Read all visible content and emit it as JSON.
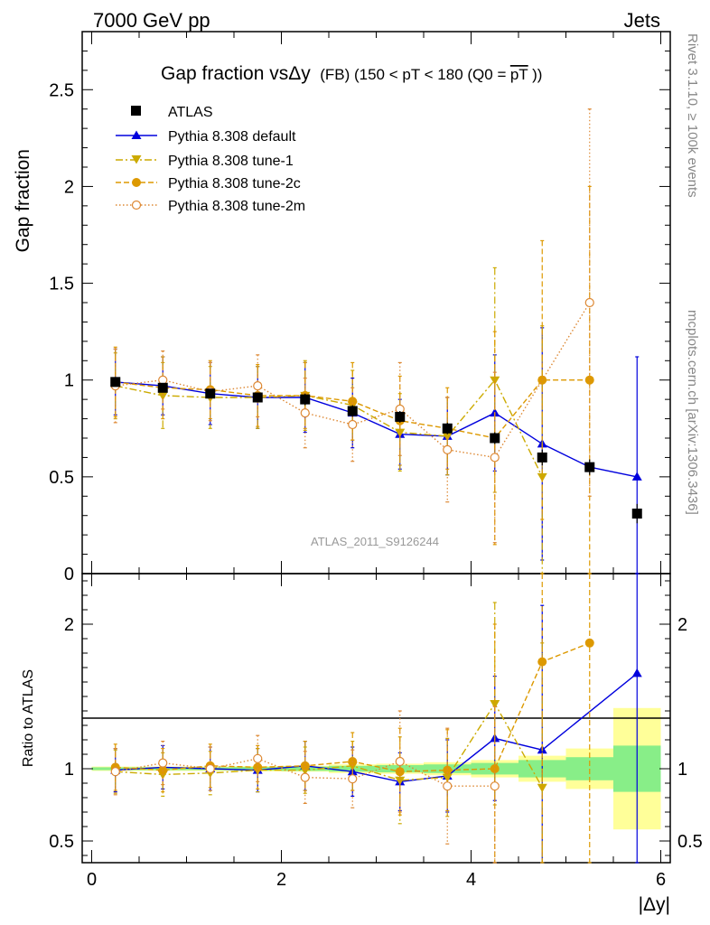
{
  "header": {
    "left": "7000 GeV pp",
    "right": "Jets"
  },
  "side_labels": {
    "rivet": "Rivet 3.1.10, ≥ 100k events",
    "mcplots": "mcplots.cern.ch [arXiv:1306.3436]"
  },
  "chart_data": [
    {
      "panel": "main",
      "type": "line",
      "title": "Gap fraction vsΔy (FB) (150 < pT < 180 (Q0 = pT))",
      "title_parts": {
        "main": "Gap fraction vsΔy",
        "sub": "(FB) (150 < pT < 180 (Q0 =",
        "overline": "pT",
        "close": "))"
      },
      "ylabel": "Gap fraction",
      "xlabel": "|Δy|",
      "xlim": [
        -0.1,
        6.1
      ],
      "ylim": [
        0,
        2.8
      ],
      "yticks": [
        0,
        0.5,
        1,
        1.5,
        2,
        2.5
      ],
      "xticks": [
        0,
        2,
        4,
        6
      ],
      "watermark": "ATLAS_2011_S9126244",
      "legend_position": "top-left",
      "x": [
        0.25,
        0.75,
        1.25,
        1.75,
        2.25,
        2.75,
        3.25,
        3.75,
        4.25,
        4.75,
        5.25,
        5.75
      ],
      "data": {
        "name": "ATLAS",
        "values": [
          0.99,
          0.96,
          0.93,
          0.91,
          0.9,
          0.84,
          0.81,
          0.75,
          0.7,
          0.6,
          0.55,
          0.31
        ],
        "err": [
          0.02,
          0.02,
          0.02,
          0.02,
          0.03,
          0.03,
          0.03,
          0.03,
          0.03,
          0.04,
          0.04,
          0.05
        ]
      },
      "series": [
        {
          "name": "Pythia 8.308 default",
          "color": "#0000dd",
          "style": "solid",
          "marker": "triangle-up",
          "values": [
            0.99,
            0.97,
            0.93,
            0.91,
            0.91,
            0.83,
            0.72,
            0.71,
            0.83,
            0.67,
            0.55,
            0.5
          ],
          "err": [
            0.17,
            0.15,
            0.16,
            0.16,
            0.18,
            0.18,
            0.18,
            0.2,
            0.3,
            0.6,
            0.02,
            0.62
          ]
        },
        {
          "name": "Pythia 8.308 tune-1",
          "color": "#ccaa00",
          "style": "dashdot",
          "marker": "triangle-down",
          "values": [
            0.97,
            0.92,
            0.91,
            0.91,
            0.92,
            0.87,
            0.73,
            0.71,
            1.0,
            0.5,
            null,
            null
          ],
          "err": [
            0.17,
            0.17,
            0.16,
            0.16,
            0.18,
            0.18,
            0.2,
            0.2,
            0.58,
            0.78,
            null,
            null
          ]
        },
        {
          "name": "Pythia 8.308 tune-2c",
          "color": "#dd9900",
          "style": "dashed",
          "marker": "circle-filled",
          "values": [
            0.99,
            0.96,
            0.95,
            0.92,
            0.92,
            0.89,
            0.79,
            0.75,
            0.7,
            1.0,
            1.0,
            null
          ],
          "err": [
            0.18,
            0.16,
            0.15,
            0.16,
            0.17,
            0.2,
            0.23,
            0.21,
            0.55,
            0.72,
            1.0,
            null
          ]
        },
        {
          "name": "Pythia 8.308 tune-2m",
          "color": "#dd8833",
          "style": "dotted",
          "marker": "circle-open",
          "values": [
            0.97,
            1.0,
            0.94,
            0.97,
            0.83,
            0.77,
            0.85,
            0.64,
            0.6,
            null,
            1.4,
            null
          ],
          "err": [
            0.19,
            0.15,
            0.15,
            0.16,
            0.18,
            0.19,
            0.24,
            0.27,
            0.44,
            null,
            1.0,
            null
          ]
        }
      ]
    },
    {
      "panel": "ratio",
      "type": "line",
      "ylabel": "Ratio to ATLAS",
      "xlabel": "|Δy|",
      "xlim": [
        -0.1,
        6.1
      ],
      "ylim": [
        0.35,
        2.35
      ],
      "yticks": [
        0.5,
        1,
        2
      ],
      "xticks": [
        0,
        2,
        4,
        6
      ],
      "x": [
        0.25,
        0.75,
        1.25,
        1.75,
        2.25,
        2.75,
        3.25,
        3.75,
        4.25,
        4.75,
        5.25,
        5.75
      ],
      "bands": {
        "x_edges": [
          0,
          0.5,
          1,
          1.5,
          2,
          2.5,
          3,
          3.5,
          4,
          4.5,
          5,
          5.5,
          6
        ],
        "green": [
          0.01,
          0.01,
          0.01,
          0.012,
          0.015,
          0.02,
          0.025,
          0.03,
          0.04,
          0.06,
          0.08,
          0.16
        ],
        "yellow": [
          0.015,
          0.015,
          0.015,
          0.018,
          0.02,
          0.03,
          0.035,
          0.045,
          0.06,
          0.09,
          0.14,
          0.42
        ]
      },
      "series": [
        {
          "name": "Pythia 8.308 default",
          "color": "#0000dd",
          "style": "solid",
          "marker": "triangle-up",
          "values": [
            0.99,
            1.01,
            1.0,
            0.99,
            1.02,
            0.98,
            0.91,
            0.95,
            1.21,
            1.13,
            null,
            1.66
          ],
          "err": [
            0.15,
            0.15,
            0.15,
            0.15,
            0.17,
            0.17,
            0.2,
            0.25,
            0.43,
            1.0,
            null,
            2.05
          ]
        },
        {
          "name": "Pythia 8.308 tune-1",
          "color": "#ccaa00",
          "style": "dashdot",
          "marker": "triangle-down",
          "values": [
            0.98,
            0.96,
            0.97,
            0.99,
            0.99,
            1.02,
            0.92,
            0.94,
            1.45,
            0.87,
            null,
            null
          ],
          "err": [
            0.15,
            0.15,
            0.15,
            0.15,
            0.16,
            0.17,
            0.3,
            0.27,
            0.7,
            1.0,
            null,
            null
          ]
        },
        {
          "name": "Pythia 8.308 tune-2c",
          "color": "#dd9900",
          "style": "dashed",
          "marker": "circle-filled",
          "values": [
            1.01,
            0.99,
            1.02,
            1.01,
            1.02,
            1.05,
            0.98,
            0.99,
            1.0,
            1.74,
            1.87,
            null
          ],
          "err": [
            0.16,
            0.15,
            0.15,
            0.15,
            0.17,
            0.2,
            0.3,
            0.28,
            1.0,
            1.5,
            2.0,
            null
          ]
        },
        {
          "name": "Pythia 8.308 tune-2m",
          "color": "#dd8833",
          "style": "dotted",
          "marker": "circle-open",
          "values": [
            0.98,
            1.04,
            1.0,
            1.07,
            0.94,
            0.93,
            1.05,
            0.88,
            0.88,
            null,
            null,
            null
          ],
          "err": [
            0.16,
            0.15,
            0.15,
            0.16,
            0.18,
            0.2,
            0.35,
            0.4,
            0.55,
            null,
            null,
            null
          ]
        }
      ]
    }
  ]
}
